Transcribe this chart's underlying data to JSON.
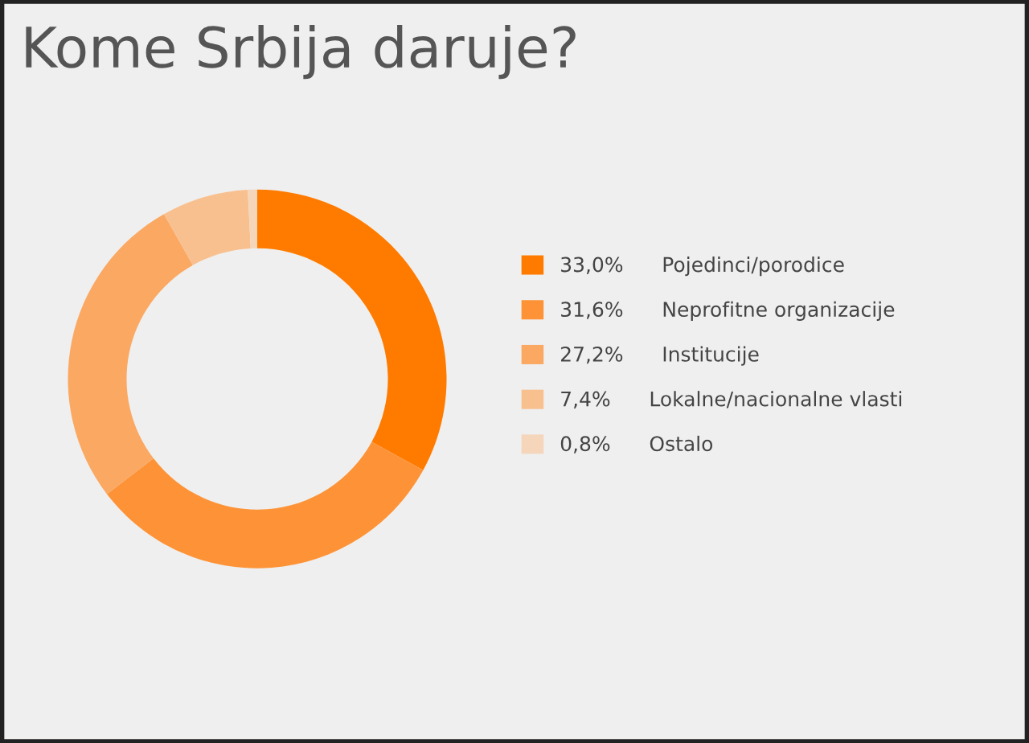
{
  "chart_data": {
    "type": "donut",
    "title": "Kome Srbija daruje?",
    "categories": [
      "Pojedinci/porodice",
      "Neprofitne organizacije",
      "Institucije",
      "Lokalne/nacionalne vlasti",
      "Ostalo"
    ],
    "values": [
      33.0,
      31.6,
      27.2,
      7.4,
      0.8
    ],
    "value_labels": [
      "33,0%",
      "31,6%",
      "27,2%",
      "7,4%",
      "0,8%"
    ],
    "colors": [
      "#ff7b00",
      "#fd9336",
      "#fba862",
      "#f9c08f",
      "#f5d6bb"
    ],
    "legend": "right"
  }
}
